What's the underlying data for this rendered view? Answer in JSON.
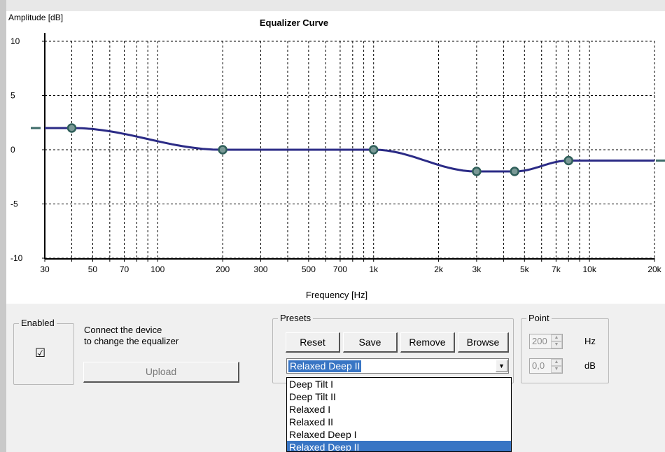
{
  "chart": {
    "ylabel": "Amplitude [dB]",
    "title": "Equalizer Curve",
    "xlabel": "Frequency [Hz]"
  },
  "chart_data": {
    "type": "line",
    "title": "Equalizer Curve",
    "xlabel": "Frequency [Hz]",
    "ylabel": "Amplitude [dB]",
    "xscale": "log",
    "xlim": [
      30,
      20000
    ],
    "ylim": [
      -10,
      10
    ],
    "grid": true,
    "x_ticks": [
      {
        "v": 30,
        "label": "30"
      },
      {
        "v": 40,
        "label": ""
      },
      {
        "v": 50,
        "label": "50"
      },
      {
        "v": 60,
        "label": ""
      },
      {
        "v": 70,
        "label": "70"
      },
      {
        "v": 80,
        "label": ""
      },
      {
        "v": 90,
        "label": ""
      },
      {
        "v": 100,
        "label": "100"
      },
      {
        "v": 200,
        "label": "200"
      },
      {
        "v": 300,
        "label": "300"
      },
      {
        "v": 400,
        "label": ""
      },
      {
        "v": 500,
        "label": "500"
      },
      {
        "v": 600,
        "label": ""
      },
      {
        "v": 700,
        "label": "700"
      },
      {
        "v": 800,
        "label": ""
      },
      {
        "v": 900,
        "label": ""
      },
      {
        "v": 1000,
        "label": "1k"
      },
      {
        "v": 2000,
        "label": "2k"
      },
      {
        "v": 3000,
        "label": "3k"
      },
      {
        "v": 4000,
        "label": ""
      },
      {
        "v": 5000,
        "label": "5k"
      },
      {
        "v": 6000,
        "label": ""
      },
      {
        "v": 7000,
        "label": "7k"
      },
      {
        "v": 8000,
        "label": ""
      },
      {
        "v": 9000,
        "label": ""
      },
      {
        "v": 10000,
        "label": "10k"
      },
      {
        "v": 20000,
        "label": "20k"
      }
    ],
    "y_ticks": [
      {
        "v": 10,
        "label": "10"
      },
      {
        "v": 5,
        "label": "5"
      },
      {
        "v": 0,
        "label": "0"
      },
      {
        "v": -5,
        "label": "-5"
      },
      {
        "v": -10,
        "label": "-10"
      }
    ],
    "points": [
      {
        "x": 40,
        "y": 2
      },
      {
        "x": 200,
        "y": 0
      },
      {
        "x": 1000,
        "y": 0
      },
      {
        "x": 3000,
        "y": -2
      },
      {
        "x": 4500,
        "y": -2
      },
      {
        "x": 8000,
        "y": -1
      }
    ],
    "left_level": 2,
    "right_level": -1,
    "line_color": "#2b2b86",
    "marker_color": "#2f5f5a"
  },
  "enabled": {
    "legend": "Enabled",
    "checked": true,
    "check_glyph": "☑",
    "message_line1": "Connect the device",
    "message_line2": "to change the equalizer",
    "upload_label": "Upload"
  },
  "presets": {
    "legend": "Presets",
    "reset_label": "Reset",
    "save_label": "Save",
    "remove_label": "Remove",
    "browse_label": "Browse",
    "selected": "Relaxed Deep II",
    "options": [
      "Deep Tilt I",
      "Deep Tilt II",
      "Relaxed I",
      "Relaxed II",
      "Relaxed Deep I",
      "Relaxed Deep II"
    ]
  },
  "point": {
    "legend": "Point",
    "hz_value": "200",
    "hz_unit": "Hz",
    "db_value": "0,0",
    "db_unit": "dB"
  },
  "colors": {
    "selection": "#3875c4",
    "edge_marker": "#3d6b69"
  }
}
